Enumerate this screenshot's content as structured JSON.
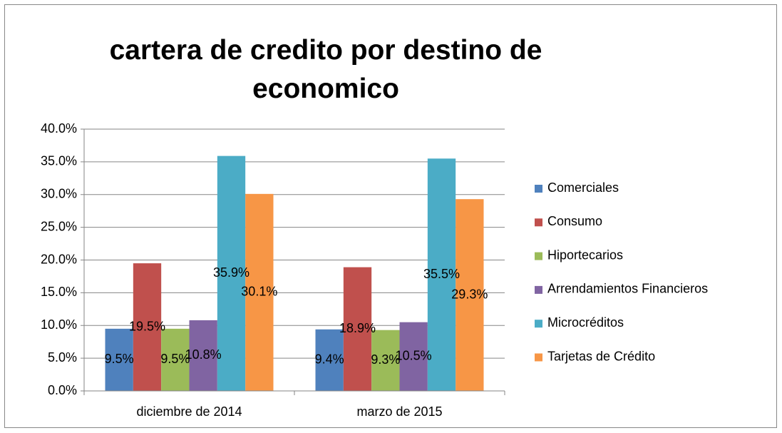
{
  "chart_data": {
    "type": "bar",
    "title": "cartera de credito por destino de economico",
    "categories": [
      "diciembre de 2014",
      "marzo de 2015"
    ],
    "series": [
      {
        "name": "Comerciales",
        "color": "#4f81bd",
        "values": [
          9.5,
          9.4
        ],
        "value_labels": [
          "9.5%",
          "9.4%"
        ]
      },
      {
        "name": "Consumo",
        "color": "#c0504d",
        "values": [
          19.5,
          18.9
        ],
        "value_labels": [
          "19.5%",
          "18.9%"
        ]
      },
      {
        "name": "Hiportecarios",
        "color": "#9bbb59",
        "values": [
          9.5,
          9.3
        ],
        "value_labels": [
          "9.5%",
          "9.3%"
        ]
      },
      {
        "name": "Arrendamientos Financieros",
        "color": "#8064a2",
        "values": [
          10.8,
          10.5
        ],
        "value_labels": [
          "10.8%",
          "10.5%"
        ]
      },
      {
        "name": "Microcréditos",
        "color": "#4bacc6",
        "values": [
          35.9,
          35.5
        ],
        "value_labels": [
          "35.9%",
          "35.5%"
        ]
      },
      {
        "name": "Tarjetas de Crédito",
        "color": "#f79646",
        "values": [
          30.1,
          29.3
        ],
        "value_labels": [
          "30.1%",
          "29.3%"
        ]
      }
    ],
    "ylim": [
      0,
      40
    ],
    "yticks": [
      {
        "value": 0,
        "label": "0.0%"
      },
      {
        "value": 5,
        "label": "5.0%"
      },
      {
        "value": 10,
        "label": "10.0%"
      },
      {
        "value": 15,
        "label": "15.0%"
      },
      {
        "value": 20,
        "label": "20.0%"
      },
      {
        "value": 25,
        "label": "25.0%"
      },
      {
        "value": 30,
        "label": "30.0%"
      },
      {
        "value": 35,
        "label": "35.0%"
      },
      {
        "value": 40,
        "label": "40.0%"
      }
    ],
    "grid": true,
    "legend": "right"
  }
}
